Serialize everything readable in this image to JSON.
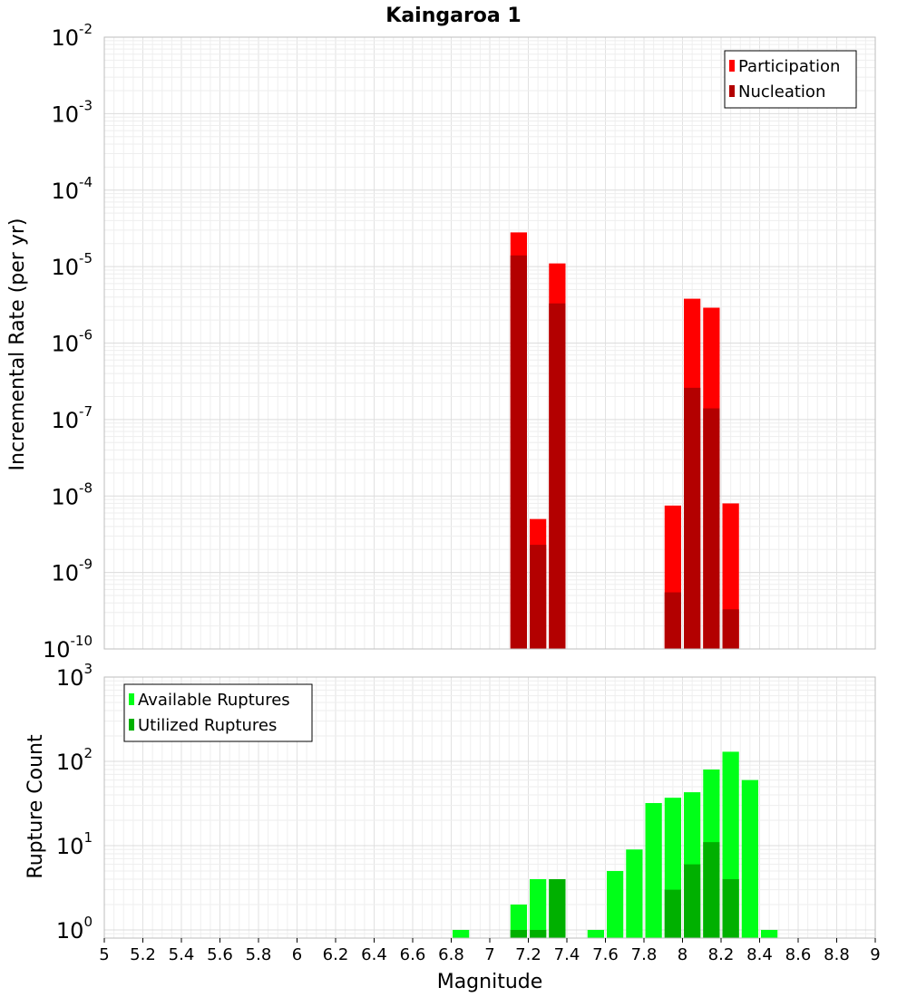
{
  "chart_data": [
    {
      "type": "bar",
      "scale": "log",
      "title": "Kaingaroa 1",
      "xlabel": "",
      "ylabel": "Incremental Rate (per yr)",
      "xlim": [
        5,
        9
      ],
      "ylim": [
        1e-10,
        0.01
      ],
      "yticks_exponents": [
        -10,
        -9,
        -8,
        -7,
        -6,
        -5,
        -4,
        -3,
        -2
      ],
      "grid": true,
      "legend_position": "top-right",
      "series": [
        {
          "name": "Participation",
          "color": "#ff0000",
          "x": [
            7.15,
            7.25,
            7.35,
            7.95,
            8.05,
            8.15,
            8.25
          ],
          "values": [
            2.8e-05,
            5e-09,
            1.1e-05,
            7.5e-09,
            3.8e-06,
            2.9e-06,
            8e-09
          ]
        },
        {
          "name": "Nucleation",
          "color": "#b30000",
          "x": [
            7.15,
            7.25,
            7.35,
            7.95,
            8.05,
            8.15,
            8.25
          ],
          "values": [
            1.4e-05,
            2.3e-09,
            3.3e-06,
            5.5e-10,
            2.6e-07,
            1.4e-07,
            3.3e-10
          ]
        }
      ]
    },
    {
      "type": "bar",
      "scale": "log",
      "title": "",
      "xlabel": "Magnitude",
      "ylabel": "Rupture Count",
      "xlim": [
        5,
        9
      ],
      "ylim": [
        0.8,
        1000
      ],
      "yticks_exponents": [
        0,
        1,
        2,
        3
      ],
      "xticks": [
        "5",
        "5.2",
        "5.4",
        "5.6",
        "5.8",
        "6",
        "6.2",
        "6.4",
        "6.6",
        "6.8",
        "7",
        "7.2",
        "7.4",
        "7.6",
        "7.8",
        "8",
        "8.2",
        "8.4",
        "8.6",
        "8.8",
        "9"
      ],
      "grid": true,
      "legend_position": "top-left",
      "series": [
        {
          "name": "Available Ruptures",
          "color": "#00ff18",
          "x": [
            6.85,
            7.15,
            7.25,
            7.35,
            7.55,
            7.65,
            7.75,
            7.85,
            7.95,
            8.05,
            8.15,
            8.25,
            8.35,
            8.45
          ],
          "values": [
            1,
            2,
            4,
            4,
            1,
            5,
            9,
            32,
            37,
            43,
            80,
            130,
            60,
            1
          ]
        },
        {
          "name": "Utilized Ruptures",
          "color": "#00b000",
          "x": [
            7.15,
            7.25,
            7.35,
            7.95,
            8.05,
            8.15,
            8.25
          ],
          "values": [
            1,
            1,
            4,
            3,
            6,
            11,
            4
          ]
        }
      ]
    }
  ]
}
